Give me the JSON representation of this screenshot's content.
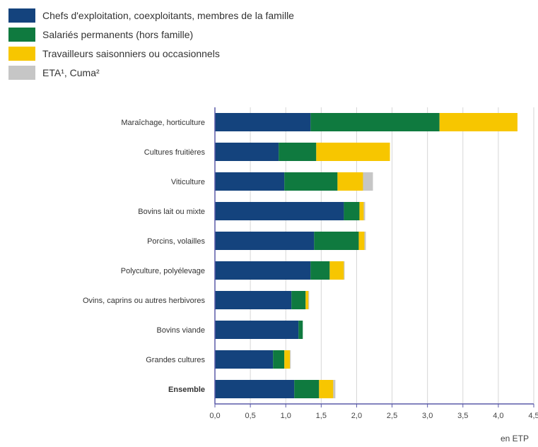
{
  "chart_data": {
    "type": "bar",
    "orientation": "horizontal",
    "stacked": true,
    "categories": [
      "Maraîchage, horticulture",
      "Cultures fruitières",
      "Viticulture",
      "Bovins lait ou mixte",
      "Porcins, volailles",
      "Polyculture, polyélevage",
      "Ovins, caprins ou autres herbivores",
      "Bovins viande",
      "Grandes cultures",
      "Ensemble"
    ],
    "bold_categories": [
      "Ensemble"
    ],
    "series": [
      {
        "name": "Chefs d'exploitation, coexploitants, membres de la famille",
        "color": "#14437d",
        "values": [
          1.35,
          0.9,
          0.98,
          1.82,
          1.4,
          1.35,
          1.08,
          1.18,
          0.82,
          1.12
        ]
      },
      {
        "name": "Salariés permanents (hors famille)",
        "color": "#0f7a3f",
        "values": [
          1.82,
          0.53,
          0.75,
          0.22,
          0.63,
          0.27,
          0.2,
          0.06,
          0.16,
          0.35
        ]
      },
      {
        "name": "Travailleurs saisonniers ou occasionnels",
        "color": "#f7c600",
        "values": [
          1.1,
          1.04,
          0.36,
          0.06,
          0.08,
          0.2,
          0.04,
          0.0,
          0.08,
          0.2
        ]
      },
      {
        "name": "ETA¹, Cuma²",
        "color": "#c6c6c6",
        "values": [
          0.0,
          0.0,
          0.14,
          0.02,
          0.02,
          0.01,
          0.01,
          0.0,
          0.01,
          0.03
        ]
      }
    ],
    "x_ticks": [
      "0,0",
      "0,5",
      "1,0",
      "1,5",
      "2,0",
      "2,5",
      "3,0",
      "3,5",
      "4,0",
      "4,5"
    ],
    "xlim": [
      0,
      4.5
    ],
    "xlabel": "en ETP",
    "grid": "vertical",
    "legend_position": "top-left"
  }
}
